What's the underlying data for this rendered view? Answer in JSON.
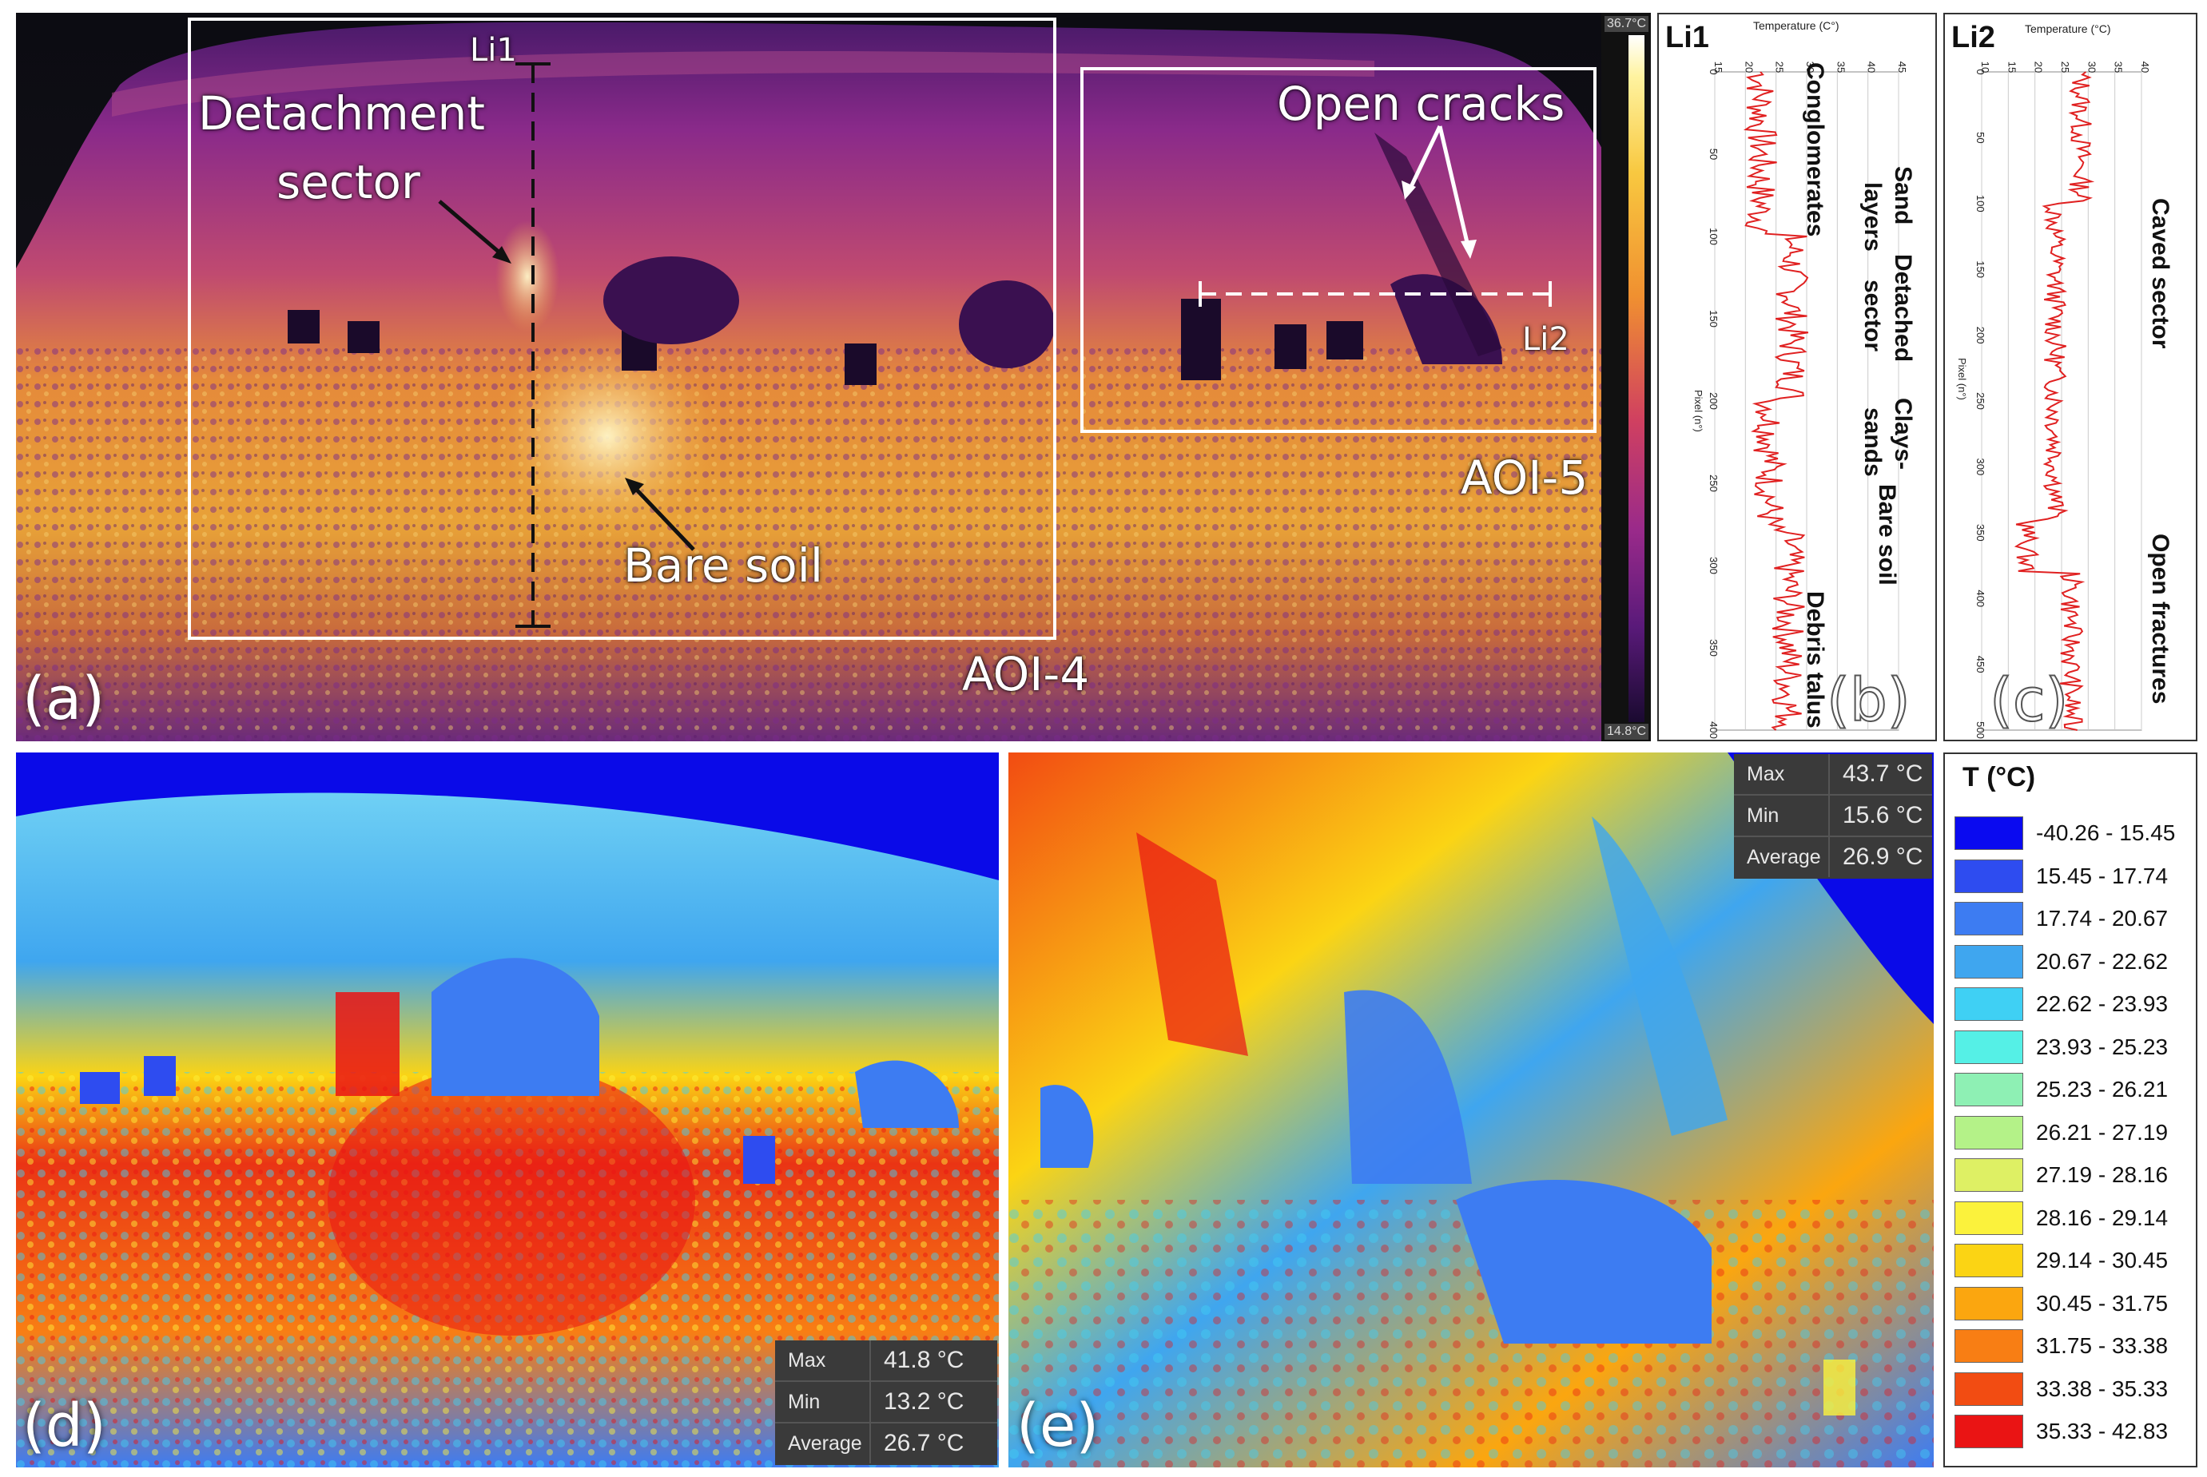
{
  "panel_a": {
    "letter": "(a)",
    "labels": {
      "li1": "Li1",
      "li2": "Li2",
      "detachment_line1": "Detachment",
      "detachment_line2": "sector",
      "open_cracks": "Open cracks",
      "bare_soil": "Bare soil",
      "aoi4": "AOI-4",
      "aoi5": "AOI-5"
    },
    "colorbar": {
      "max": "36.7°C",
      "min": "14.8°C"
    }
  },
  "panel_b": {
    "letter": "(b)",
    "profile_label": "Li1",
    "x_title": "Temperature (C°)",
    "y_title": "Pixel (n°)",
    "x_ticks": [
      "15",
      "20",
      "25",
      "30",
      "35",
      "40",
      "45"
    ],
    "y_ticks": [
      "0",
      "50",
      "100",
      "150",
      "200",
      "250",
      "300",
      "350",
      "400"
    ],
    "zones": {
      "conglomerates": "Conglomerates",
      "sand_layers_1": "Sand",
      "sand_layers_2": "layers",
      "detached_1": "Detached",
      "detached_2": "sector",
      "clays_1": "Clays-",
      "clays_2": "sands",
      "bare_soil": "Bare soil",
      "debris": "Debris talus"
    }
  },
  "panel_c": {
    "letter": "(c)",
    "profile_label": "Li2",
    "x_title": "Temperature (°C)",
    "y_title": "Pixel (n°)",
    "x_ticks": [
      "10",
      "15",
      "20",
      "25",
      "30",
      "35",
      "40"
    ],
    "y_ticks": [
      "0",
      "50",
      "100",
      "150",
      "200",
      "250",
      "300",
      "350",
      "400",
      "450",
      "500"
    ],
    "zones": {
      "caved": "Caved sector",
      "open_fractures": "Open fractures"
    }
  },
  "panel_d": {
    "letter": "(d)",
    "stats": {
      "max_k": "Max",
      "max_v": "41.8 °C",
      "min_k": "Min",
      "min_v": "13.2 °C",
      "avg_k": "Average",
      "avg_v": "26.7 °C"
    }
  },
  "panel_e": {
    "letter": "(e)",
    "stats": {
      "max_k": "Max",
      "max_v": "43.7 °C",
      "min_k": "Min",
      "min_v": "15.6 °C",
      "avg_k": "Average",
      "avg_v": "26.9 °C"
    }
  },
  "legend": {
    "title": "T (°C)",
    "classes": [
      {
        "label": "-40.26 - 15.45",
        "color": "#0a0af0"
      },
      {
        "label": "15.45 - 17.74",
        "color": "#2e4cf0"
      },
      {
        "label": "17.74 - 20.67",
        "color": "#3d7cf2"
      },
      {
        "label": "20.67 - 22.62",
        "color": "#3fa6ef"
      },
      {
        "label": "22.62 - 23.93",
        "color": "#3fd0f4"
      },
      {
        "label": "23.93 - 25.23",
        "color": "#55f0e6"
      },
      {
        "label": "25.23 - 26.21",
        "color": "#8ef0b4"
      },
      {
        "label": "26.21 - 27.19",
        "color": "#b4f288"
      },
      {
        "label": "27.19 - 28.16",
        "color": "#def064"
      },
      {
        "label": "28.16 - 29.14",
        "color": "#fbf23c"
      },
      {
        "label": "29.14 - 30.45",
        "color": "#fbd414"
      },
      {
        "label": "30.45 - 31.75",
        "color": "#fba60f"
      },
      {
        "label": "31.75 - 33.38",
        "color": "#f87e14"
      },
      {
        "label": "33.38 - 35.33",
        "color": "#f24c12"
      },
      {
        "label": "35.33 - 42.83",
        "color": "#ea1414"
      }
    ]
  }
}
